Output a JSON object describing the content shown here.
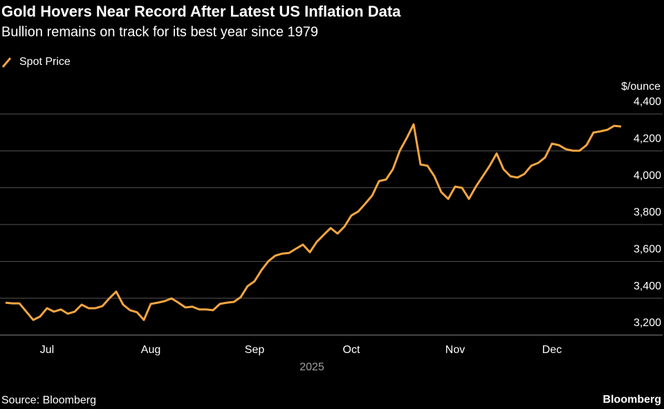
{
  "chart_data": {
    "type": "line",
    "title": "Gold Hovers Near Record After Latest US Inflation Data",
    "subtitle": "Bullion remains on track for its best year since 1979",
    "ylabel": "$/ounce",
    "xlabel": "2025",
    "source": "Source: Bloomberg",
    "brand": "Bloomberg",
    "categories": [
      null,
      null,
      null,
      null,
      null,
      null,
      "Jul",
      null,
      null,
      null,
      null,
      null,
      null,
      null,
      null,
      null,
      null,
      null,
      null,
      null,
      null,
      "Aug",
      null,
      null,
      null,
      null,
      null,
      null,
      null,
      null,
      null,
      null,
      null,
      null,
      null,
      null,
      "Sep",
      null,
      null,
      null,
      null,
      null,
      null,
      null,
      null,
      null,
      null,
      null,
      null,
      null,
      "Oct",
      null,
      null,
      null,
      null,
      null,
      null,
      null,
      null,
      null,
      null,
      null,
      null,
      null,
      null,
      "Nov",
      null,
      null,
      null,
      null,
      null,
      null,
      null,
      null,
      null,
      null,
      null,
      null,
      null,
      "Dec",
      null,
      null,
      null,
      null,
      null,
      null,
      null,
      null,
      null,
      null
    ],
    "series": [
      {
        "name": "Spot Price",
        "color": "#f7a641",
        "values": [
          3376,
          3372,
          3372,
          3327,
          3282,
          3301,
          3346,
          3327,
          3339,
          3316,
          3327,
          3365,
          3346,
          3346,
          3357,
          3399,
          3436,
          3365,
          3335,
          3324,
          3282,
          3369,
          3376,
          3384,
          3399,
          3376,
          3350,
          3354,
          3339,
          3339,
          3335,
          3369,
          3376,
          3380,
          3406,
          3466,
          3492,
          3552,
          3601,
          3631,
          3642,
          3646,
          3669,
          3691,
          3650,
          3706,
          3744,
          3781,
          3751,
          3789,
          3849,
          3871,
          3913,
          3957,
          4036,
          4044,
          4100,
          4201,
          4269,
          4344,
          4126,
          4119,
          4062,
          3976,
          3939,
          4006,
          3999,
          3939,
          4006,
          4062,
          4119,
          4186,
          4100,
          4062,
          4055,
          4074,
          4119,
          4134,
          4164,
          4239,
          4231,
          4209,
          4201,
          4201,
          4231,
          4299,
          4306,
          4314,
          4336,
          4332
        ]
      }
    ],
    "ylim": [
      3200,
      4400
    ],
    "yticks": [
      {
        "value": 3200,
        "label": "3,200"
      },
      {
        "value": 3400,
        "label": "3,400"
      },
      {
        "value": 3600,
        "label": "3,600"
      },
      {
        "value": 3800,
        "label": "3,800"
      },
      {
        "value": 4000,
        "label": "4,000"
      },
      {
        "value": 4200,
        "label": "4,200"
      },
      {
        "value": 4400,
        "label": "4,400"
      }
    ],
    "grid": true
  }
}
